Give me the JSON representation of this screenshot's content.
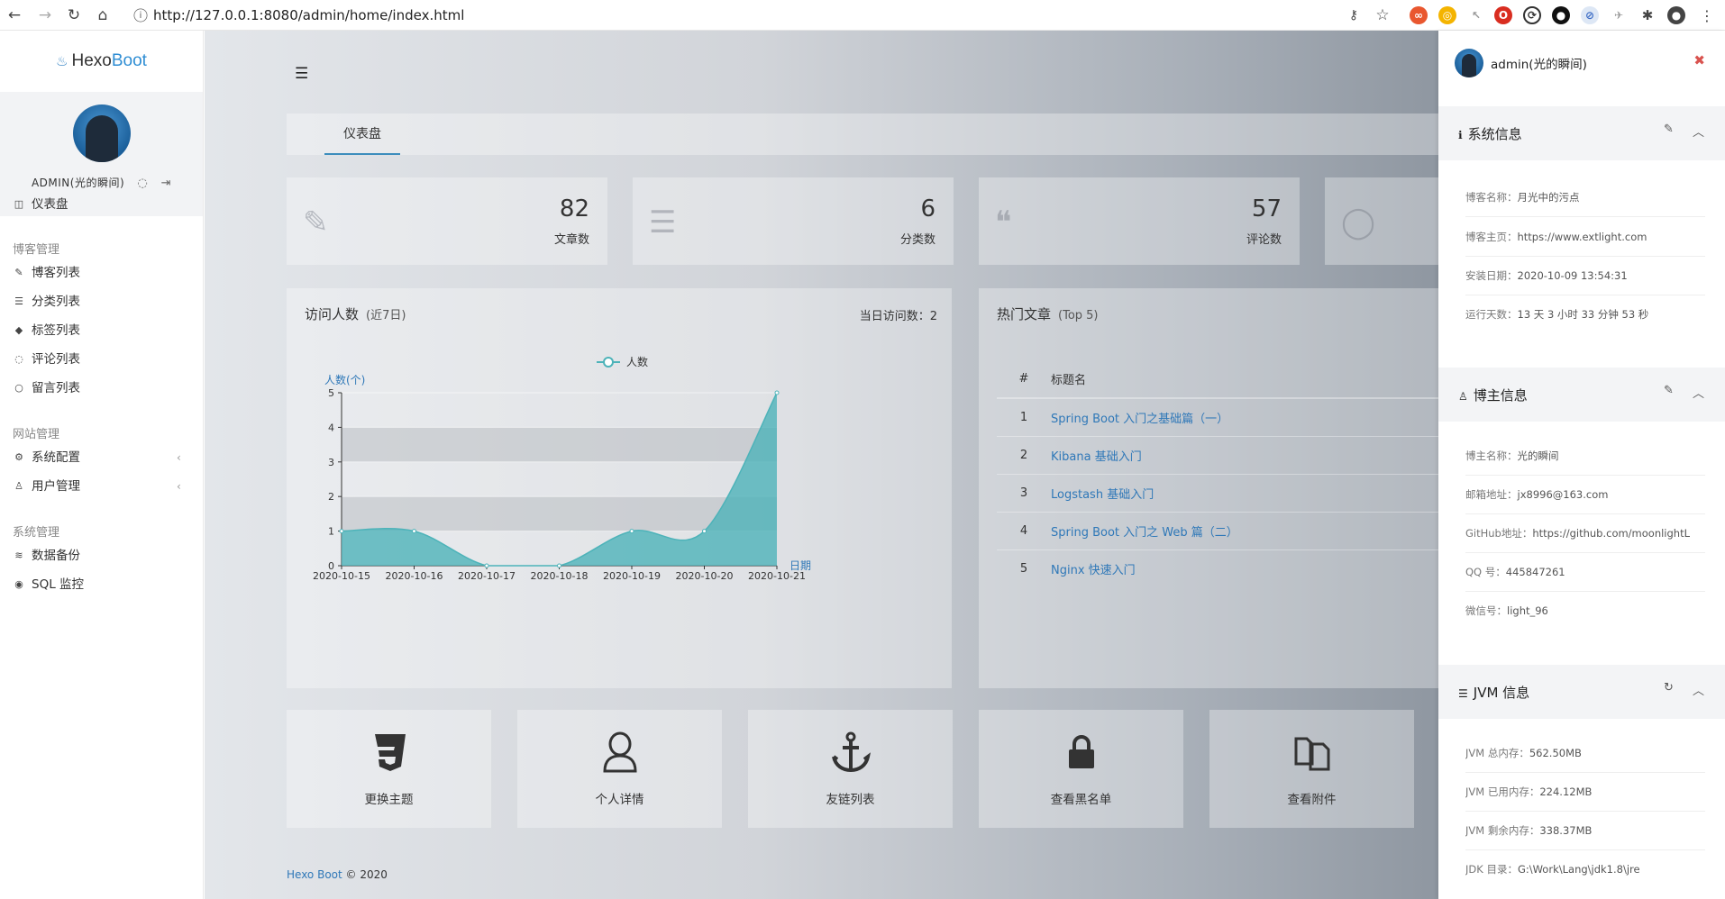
{
  "browser": {
    "url": "http://127.0.0.1:8080/admin/home/index.html"
  },
  "sidebar": {
    "logo_prefix": "Hexo",
    "logo_suffix": "Boot",
    "user_name": "ADMIN(光的瞬间)",
    "groups": {
      "blog": "博客管理",
      "site": "网站管理",
      "system": "系统管理"
    },
    "items": {
      "dashboard": "仪表盘",
      "blog_list": "博客列表",
      "category_list": "分类列表",
      "tag_list": "标签列表",
      "comment_list": "评论列表",
      "message_list": "留言列表",
      "system_config": "系统配置",
      "user_manage": "用户管理",
      "data_backup": "数据备份",
      "sql_monitor": "SQL 监控"
    }
  },
  "main": {
    "tab_dashboard": "仪表盘",
    "stats": [
      {
        "value": "82",
        "label": "文章数"
      },
      {
        "value": "6",
        "label": "分类数"
      },
      {
        "value": "57",
        "label": "评论数"
      }
    ],
    "visitors": {
      "title": "访问人数",
      "subtitle": "(近7日)",
      "today": "当日访问数：2"
    },
    "hot": {
      "title": "热门文章",
      "subtitle": "(Top 5)",
      "col_num": "#",
      "col_title": "标题名",
      "rows": [
        {
          "n": "1",
          "title": "Spring Boot 入门之基础篇（一）"
        },
        {
          "n": "2",
          "title": "Kibana 基础入门"
        },
        {
          "n": "3",
          "title": "Logstash 基础入门"
        },
        {
          "n": "4",
          "title": "Spring Boot 入门之 Web 篇（二）"
        },
        {
          "n": "5",
          "title": "Nginx 快速入门"
        }
      ]
    },
    "shortcuts": {
      "theme": "更换主题",
      "profile": "个人详情",
      "links": "友链列表",
      "blacklist": "查看黑名单",
      "attachments": "查看附件"
    },
    "footer_brand": "Hexo Boot",
    "footer_copy": " © 2020"
  },
  "chart_data": {
    "type": "area",
    "legend": "人数",
    "ylabel": "人数(个)",
    "xlabel": "日期",
    "ylim": [
      0,
      5
    ],
    "yticks": [
      "0",
      "1",
      "2",
      "3",
      "4",
      "5"
    ],
    "categories": [
      "2020-10-15",
      "2020-10-16",
      "2020-10-17",
      "2020-10-18",
      "2020-10-19",
      "2020-10-20",
      "2020-10-21"
    ],
    "series": [
      {
        "name": "人数",
        "values": [
          1,
          1,
          0,
          0,
          1,
          1,
          5
        ]
      }
    ],
    "color": "#4db3b9"
  },
  "rpanel": {
    "user": "admin(光的瞬间)",
    "sys_title": "系统信息",
    "sys_rows": [
      {
        "k": "博客名称：",
        "v": "月光中的污点"
      },
      {
        "k": "博客主页：",
        "v": "https://www.extlight.com"
      },
      {
        "k": "安装日期：",
        "v": "2020-10-09 13:54:31"
      },
      {
        "k": "运行天数：",
        "v": "13 天 3 小时 33 分钟 53 秒"
      }
    ],
    "owner_title": "博主信息",
    "owner_rows": [
      {
        "k": "博主名称：",
        "v": "光的瞬间"
      },
      {
        "k": "邮箱地址：",
        "v": "jx8996@163.com"
      },
      {
        "k": "GitHub地址：",
        "v": "https://github.com/moonlightL"
      },
      {
        "k": "QQ 号：",
        "v": "445847261"
      },
      {
        "k": "微信号：",
        "v": "light_96"
      }
    ],
    "jvm_title": "JVM 信息",
    "jvm_rows": [
      {
        "k": "JVM 总内存：",
        "v": "562.50MB"
      },
      {
        "k": "JVM 已用内存：",
        "v": "224.12MB"
      },
      {
        "k": "JVM 剩余内存：",
        "v": "338.37MB"
      },
      {
        "k": "JDK 目录：",
        "v": "G:\\Work\\Lang\\jdk1.8\\jre"
      }
    ]
  }
}
